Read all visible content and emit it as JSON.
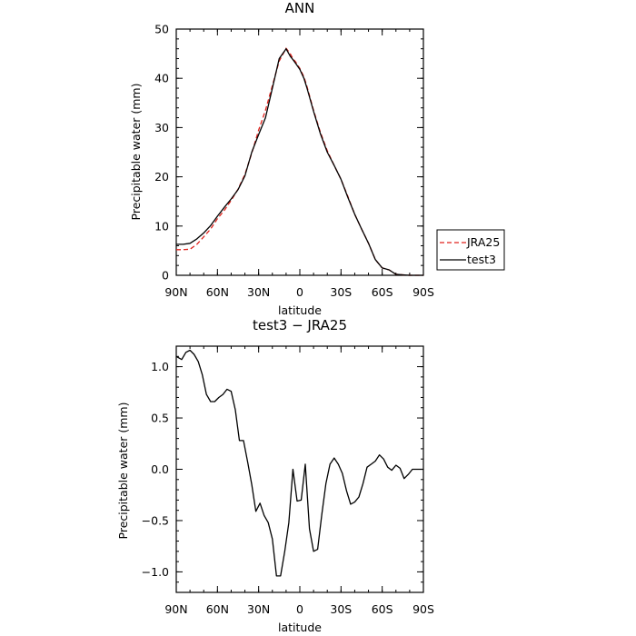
{
  "chart_data": [
    {
      "type": "line",
      "title": "ANN",
      "xlabel": "latitude",
      "ylabel": "Precipitable water (mm)",
      "xlim": [
        90,
        -90
      ],
      "ylim": [
        0,
        50
      ],
      "x_tick_values": [
        90,
        60,
        30,
        0,
        -30,
        -60,
        -90
      ],
      "x_tick_labels": [
        "90N",
        "60N",
        "30N",
        "0",
        "30S",
        "60S",
        "90S"
      ],
      "y_ticks": [
        0,
        10,
        20,
        30,
        40,
        50
      ],
      "grid": false,
      "legend_position": "right, outside plot",
      "series": [
        {
          "name": "JRA25",
          "color": "#e0221c",
          "dash": "dashed",
          "x": [
            90,
            85,
            80,
            75,
            70,
            65,
            60,
            55,
            50,
            45,
            40,
            35,
            30,
            25,
            20,
            15,
            10,
            7,
            5,
            3,
            0,
            -3,
            -5,
            -10,
            -15,
            -20,
            -25,
            -30,
            -35,
            -40,
            -45,
            -50,
            -55,
            -60,
            -65,
            -70,
            -75,
            -80,
            -85,
            -90
          ],
          "values": [
            5.2,
            5.2,
            5.3,
            6.3,
            7.8,
            9.4,
            11.5,
            13.2,
            15.2,
            17.5,
            20.5,
            24.8,
            29.5,
            33.5,
            38.5,
            43.5,
            46.1,
            45.0,
            44.0,
            43.3,
            42.0,
            40.3,
            38.5,
            33.5,
            29.0,
            25.3,
            22.3,
            19.5,
            16.0,
            12.4,
            9.4,
            6.5,
            3.2,
            1.5,
            1.1,
            0.2,
            0.1,
            0.0,
            0.0,
            0.0
          ]
        },
        {
          "name": "test3",
          "color": "#000000",
          "dash": "solid",
          "x": [
            90,
            85,
            80,
            75,
            70,
            65,
            60,
            55,
            50,
            45,
            40,
            35,
            30,
            25,
            20,
            15,
            10,
            7,
            5,
            3,
            0,
            -3,
            -5,
            -10,
            -15,
            -20,
            -25,
            -30,
            -35,
            -40,
            -45,
            -50,
            -55,
            -60,
            -65,
            -70,
            -75,
            -80,
            -85,
            -90
          ],
          "values": [
            6.3,
            6.3,
            6.5,
            7.4,
            8.6,
            10.1,
            12.0,
            13.8,
            15.5,
            17.4,
            20.2,
            25.0,
            28.6,
            32.0,
            38.0,
            44.0,
            46.0,
            44.5,
            43.8,
            43.0,
            41.8,
            40.0,
            38.2,
            33.3,
            28.7,
            25.0,
            22.3,
            19.5,
            15.8,
            12.4,
            9.4,
            6.5,
            3.2,
            1.5,
            1.1,
            0.2,
            0.1,
            0.0,
            0.0,
            0.0
          ]
        }
      ]
    },
    {
      "type": "line",
      "title": "test3 − JRA25",
      "xlabel": "latitude",
      "ylabel": "Precipitable water (mm)",
      "xlim": [
        90,
        -90
      ],
      "ylim": [
        -1.2,
        1.2
      ],
      "x_tick_values": [
        90,
        60,
        30,
        0,
        -30,
        -60,
        -90
      ],
      "x_tick_labels": [
        "90N",
        "60N",
        "30N",
        "0",
        "30S",
        "60S",
        "90S"
      ],
      "y_ticks": [
        -1.0,
        -0.5,
        0.0,
        0.5,
        1.0
      ],
      "y_tick_labels": [
        "−1.0",
        "−0.5",
        "0.0",
        "0.5",
        "1.0"
      ],
      "grid": false,
      "series": [
        {
          "color": "#000000",
          "dash": "solid",
          "x": [
            90,
            86,
            83,
            80,
            77,
            74,
            71,
            68,
            65,
            62,
            59,
            56,
            53,
            50,
            47,
            44,
            41,
            38,
            35,
            32,
            29,
            26,
            23,
            20,
            17,
            14,
            11,
            8,
            5,
            2,
            -1,
            -4,
            -7,
            -10,
            -13,
            -16,
            -19,
            -22,
            -25,
            -28,
            -31,
            -34,
            -37,
            -40,
            -43,
            -46,
            -49,
            -52,
            -55,
            -58,
            -61,
            -64,
            -67,
            -70,
            -73,
            -76,
            -79,
            -82,
            -85,
            -88,
            -90
          ],
          "values": [
            1.1,
            1.07,
            1.14,
            1.16,
            1.12,
            1.05,
            0.92,
            0.73,
            0.66,
            0.66,
            0.7,
            0.73,
            0.78,
            0.76,
            0.58,
            0.28,
            0.28,
            0.07,
            -0.15,
            -0.41,
            -0.33,
            -0.45,
            -0.52,
            -0.68,
            -1.04,
            -1.04,
            -0.8,
            -0.52,
            0.0,
            -0.31,
            -0.3,
            0.05,
            -0.58,
            -0.8,
            -0.78,
            -0.44,
            -0.14,
            0.05,
            0.11,
            0.05,
            -0.04,
            -0.21,
            -0.34,
            -0.32,
            -0.27,
            -0.14,
            0.02,
            0.05,
            0.08,
            0.14,
            0.1,
            0.02,
            -0.01,
            0.04,
            0.01,
            -0.09,
            -0.05,
            0.0,
            0.0,
            0.0,
            0.0
          ]
        }
      ]
    }
  ]
}
